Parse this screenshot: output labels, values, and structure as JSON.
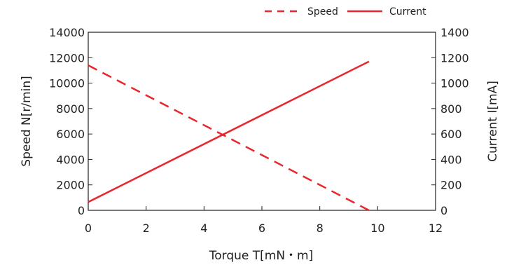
{
  "chart_data": {
    "type": "line",
    "xlabel": "Torque T[mN・m]",
    "ylabel": "Speed N[r/min]",
    "y2label": "Current I[mA]",
    "xlim": [
      0,
      12
    ],
    "ylim": [
      0,
      14000
    ],
    "y2lim": [
      0,
      1400
    ],
    "x_ticks": [
      0,
      2,
      4,
      6,
      8,
      10,
      12
    ],
    "y_ticks": [
      0,
      2000,
      4000,
      6000,
      8000,
      10000,
      12000,
      14000
    ],
    "y2_ticks": [
      0,
      200,
      400,
      600,
      800,
      1000,
      1200,
      1400
    ],
    "grid": false,
    "legend_position": "top-right",
    "series": [
      {
        "name": "Speed",
        "axis": "left",
        "style": "dashed",
        "color": "#e8262e",
        "x": [
          0,
          9.7
        ],
        "y": [
          11400,
          0
        ]
      },
      {
        "name": "Current",
        "axis": "right",
        "style": "solid",
        "color": "#e8262e",
        "x": [
          0,
          9.7
        ],
        "y": [
          65,
          1170
        ]
      }
    ]
  }
}
